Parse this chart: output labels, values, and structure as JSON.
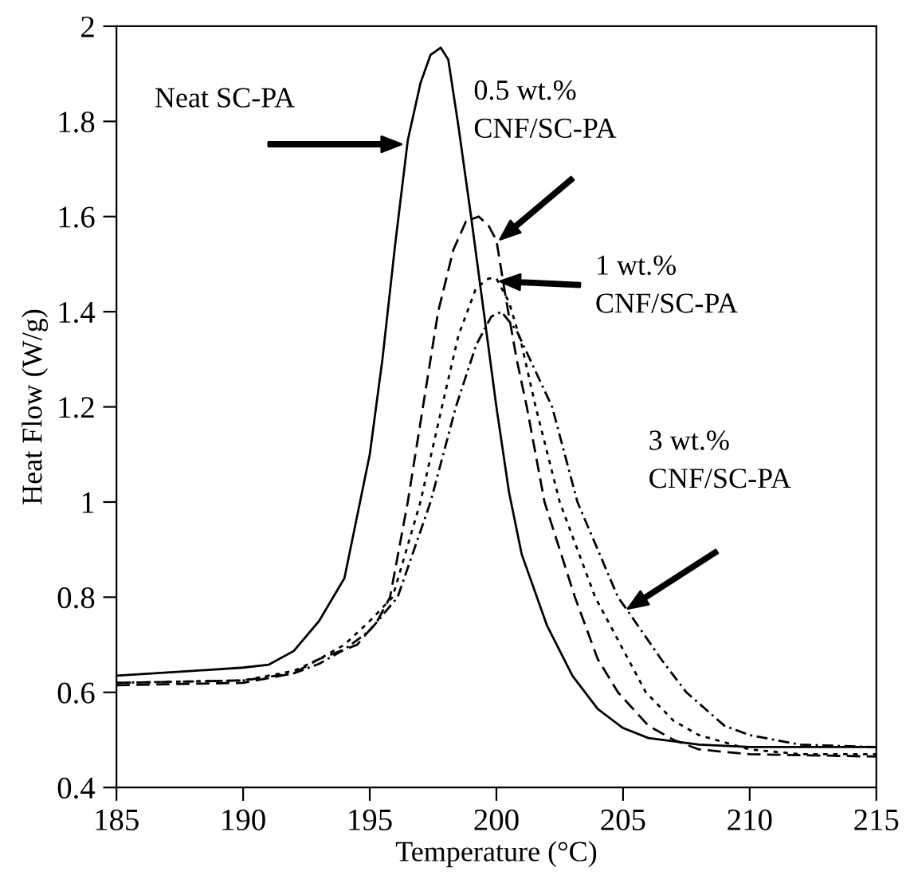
{
  "chart_data": {
    "type": "line",
    "xlabel": "Temperature (°C)",
    "ylabel": "Heat Flow (W/g)",
    "xlim": [
      185,
      215
    ],
    "xticks": [
      185,
      190,
      195,
      200,
      205,
      210,
      215
    ],
    "ylim": [
      0.4,
      2
    ],
    "yticks": [
      {
        "value": 0.4,
        "label": "0.4"
      },
      {
        "value": 0.6,
        "label": "0.6"
      },
      {
        "value": 0.8,
        "label": "0.8"
      },
      {
        "value": 1,
        "label": "1"
      },
      {
        "value": 1.2,
        "label": "1.2"
      },
      {
        "value": 1.4,
        "label": "1.4"
      },
      {
        "value": 1.6,
        "label": "1.6"
      },
      {
        "value": 1.8,
        "label": "1.8"
      },
      {
        "value": 2,
        "label": "2"
      }
    ],
    "grid": false,
    "legend": false,
    "marker": "none",
    "series": [
      {
        "color": "#000000",
        "line_style": "solid",
        "x": [
          185,
          188,
          190,
          191,
          192,
          193,
          194,
          195,
          195.5,
          196,
          196.5,
          197,
          197.4,
          197.8,
          198.1,
          198.5,
          199,
          199.5,
          200,
          200.5,
          201,
          202,
          203,
          204,
          205,
          206,
          208,
          210,
          215
        ],
        "values": [
          0.635,
          0.645,
          0.652,
          0.658,
          0.687,
          0.75,
          0.84,
          1.1,
          1.3,
          1.54,
          1.76,
          1.88,
          1.94,
          1.955,
          1.93,
          1.79,
          1.6,
          1.4,
          1.2,
          1.02,
          0.89,
          0.74,
          0.635,
          0.565,
          0.525,
          0.504,
          0.49,
          0.485,
          0.485
        ]
      },
      {
        "color": "#000000",
        "line_style": "dashed",
        "x": [
          185,
          190,
          192,
          193,
          194.5,
          195.3,
          195.8,
          196.5,
          197.1,
          197.7,
          198.3,
          198.8,
          199.3,
          199.7,
          200,
          200.4,
          200.8,
          201.2,
          201.9,
          203.1,
          204,
          204.8,
          206,
          207,
          208,
          210,
          215
        ],
        "values": [
          0.615,
          0.62,
          0.64,
          0.67,
          0.7,
          0.75,
          0.8,
          1.0,
          1.2,
          1.4,
          1.53,
          1.59,
          1.6,
          1.58,
          1.55,
          1.42,
          1.3,
          1.2,
          1.0,
          0.8,
          0.67,
          0.6,
          0.53,
          0.5,
          0.48,
          0.47,
          0.465
        ]
      },
      {
        "color": "#000000",
        "line_style": "dotted",
        "x": [
          185,
          190,
          192,
          193,
          194,
          195,
          195.9,
          197,
          197.85,
          198.5,
          199.2,
          199.7,
          200,
          200.5,
          201,
          201.55,
          202.5,
          203.9,
          205.9,
          207,
          208,
          210,
          212,
          215
        ],
        "values": [
          0.62,
          0.625,
          0.645,
          0.67,
          0.7,
          0.75,
          0.8,
          1.0,
          1.2,
          1.35,
          1.45,
          1.47,
          1.47,
          1.42,
          1.33,
          1.2,
          1.0,
          0.8,
          0.6,
          0.54,
          0.51,
          0.48,
          0.47,
          0.47
        ]
      },
      {
        "color": "#000000",
        "line_style": "dashdot",
        "x": [
          185,
          190,
          192,
          193,
          194,
          195,
          196.1,
          197.4,
          198.4,
          199.2,
          199.8,
          200.2,
          200.8,
          201.5,
          202.2,
          203.2,
          204.8,
          205.2,
          206.5,
          207.5,
          209,
          210,
          212,
          215
        ],
        "values": [
          0.62,
          0.625,
          0.64,
          0.66,
          0.69,
          0.73,
          0.8,
          1.0,
          1.2,
          1.33,
          1.39,
          1.4,
          1.36,
          1.28,
          1.2,
          1.0,
          0.8,
          0.77,
          0.67,
          0.6,
          0.53,
          0.51,
          0.49,
          0.485
        ]
      }
    ],
    "annotations": [
      "Neat SC-PA",
      "0.5 wt.%\nCNF/SC-PA",
      "1 wt.%\nCNF/SC-PA",
      "3 wt.%\nCNF/SC-PA"
    ]
  }
}
